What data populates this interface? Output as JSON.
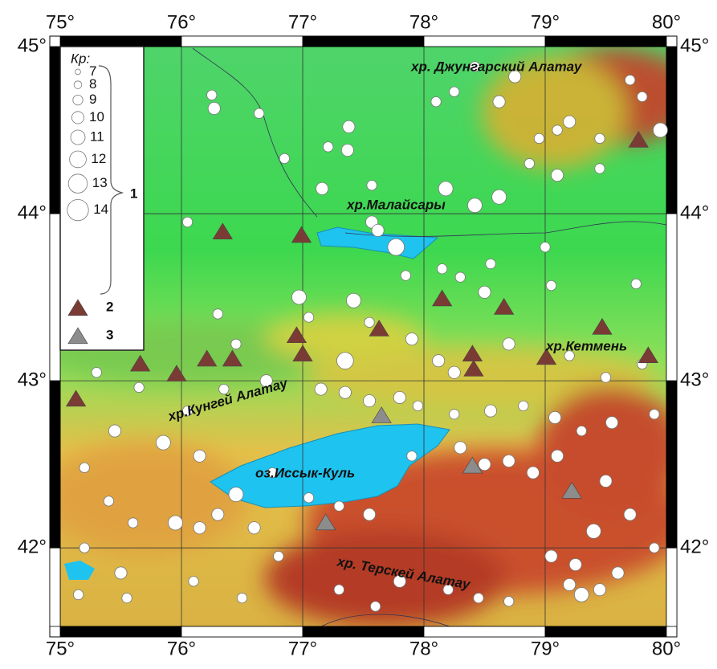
{
  "map": {
    "xlim": [
      75,
      80
    ],
    "ylim": [
      41.53,
      45
    ],
    "xticks": [
      {
        "value": 75,
        "label": "75°"
      },
      {
        "value": 76,
        "label": "76°"
      },
      {
        "value": 77,
        "label": "77°"
      },
      {
        "value": 78,
        "label": "78°"
      },
      {
        "value": 79,
        "label": "79°"
      },
      {
        "value": 80,
        "label": "80°"
      }
    ],
    "yticks": [
      {
        "value": 45,
        "label": "45°"
      },
      {
        "value": 44,
        "label": "44°"
      },
      {
        "value": 43,
        "label": "43°"
      },
      {
        "value": 42,
        "label": "42°"
      }
    ],
    "legend": {
      "title": "Кр:",
      "classes": [
        7,
        8,
        9,
        10,
        11,
        12,
        13,
        14
      ],
      "group_label": "1",
      "type2_label": "2",
      "type3_label": "3"
    },
    "place_labels": [
      "хр. Джунгарский Алатау",
      "хр.Малайсары",
      "хр.Кетмень",
      "хр.Кунгей Алатау",
      "оз.Иссык-Куль",
      "хр. Терскей Алатау"
    ],
    "type2_color": "#7b3b35",
    "type3_color": "#8c8c8c",
    "type2_stations": [
      [
        75.13,
        42.89
      ],
      [
        75.66,
        43.1
      ],
      [
        75.96,
        43.04
      ],
      [
        76.21,
        43.13
      ],
      [
        76.34,
        43.89
      ],
      [
        76.42,
        43.13
      ],
      [
        76.95,
        43.27
      ],
      [
        76.99,
        43.87
      ],
      [
        77.0,
        43.16
      ],
      [
        77.63,
        43.31
      ],
      [
        78.15,
        43.49
      ],
      [
        78.4,
        43.16
      ],
      [
        78.41,
        43.07
      ],
      [
        78.66,
        43.44
      ],
      [
        79.01,
        43.14
      ],
      [
        79.47,
        43.32
      ],
      [
        79.77,
        44.44
      ],
      [
        79.85,
        43.15
      ]
    ],
    "type3_stations": [
      [
        77.65,
        42.79
      ],
      [
        78.4,
        42.49
      ],
      [
        77.19,
        42.15
      ],
      [
        79.22,
        42.34
      ]
    ],
    "events": [
      [
        76.25,
        44.71,
        9
      ],
      [
        76.27,
        44.63,
        10
      ],
      [
        76.64,
        44.6,
        9
      ],
      [
        77.21,
        44.4,
        9
      ],
      [
        77.37,
        44.38,
        10
      ],
      [
        77.38,
        44.52,
        10
      ],
      [
        76.85,
        44.33,
        9
      ],
      [
        77.16,
        44.15,
        10
      ],
      [
        77.57,
        44.17,
        9
      ],
      [
        78.1,
        44.67,
        9
      ],
      [
        78.25,
        44.73,
        9
      ],
      [
        78.42,
        44.88,
        9
      ],
      [
        78.62,
        44.67,
        10
      ],
      [
        78.75,
        44.82,
        10
      ],
      [
        78.95,
        44.45,
        9
      ],
      [
        78.87,
        44.3,
        9
      ],
      [
        79.1,
        44.23,
        10
      ],
      [
        79.1,
        44.5,
        9
      ],
      [
        79.2,
        44.55,
        10
      ],
      [
        79.45,
        44.45,
        9
      ],
      [
        79.45,
        44.27,
        9
      ],
      [
        79.7,
        44.8,
        9
      ],
      [
        79.95,
        44.5,
        11
      ],
      [
        79.8,
        44.7,
        9
      ],
      [
        78.42,
        44.05,
        11
      ],
      [
        78.62,
        44.1,
        11
      ],
      [
        78.18,
        44.15,
        11
      ],
      [
        77.57,
        43.95,
        10
      ],
      [
        77.77,
        43.8,
        12
      ],
      [
        77.62,
        43.9,
        10
      ],
      [
        78.15,
        43.67,
        9
      ],
      [
        78.3,
        43.62,
        9
      ],
      [
        78.55,
        43.7,
        9
      ],
      [
        79.0,
        43.8,
        9
      ],
      [
        77.85,
        43.63,
        9
      ],
      [
        78.5,
        43.53,
        10
      ],
      [
        79.05,
        43.57,
        9
      ],
      [
        79.75,
        43.58,
        9
      ],
      [
        76.97,
        43.5,
        11
      ],
      [
        77.42,
        43.48,
        11
      ],
      [
        76.05,
        43.95,
        9
      ],
      [
        76.3,
        43.4,
        9
      ],
      [
        76.45,
        43.22,
        9
      ],
      [
        77.05,
        43.38,
        9
      ],
      [
        77.35,
        43.12,
        12
      ],
      [
        77.55,
        43.35,
        9
      ],
      [
        77.9,
        43.25,
        10
      ],
      [
        78.12,
        43.12,
        10
      ],
      [
        78.25,
        43.05,
        10
      ],
      [
        78.7,
        43.22,
        10
      ],
      [
        79.2,
        43.15,
        9
      ],
      [
        79.5,
        43.02,
        9
      ],
      [
        79.8,
        43.1,
        9
      ],
      [
        75.3,
        43.05,
        9
      ],
      [
        75.65,
        42.96,
        9
      ],
      [
        76.05,
        42.82,
        9
      ],
      [
        76.35,
        42.95,
        9
      ],
      [
        76.7,
        43.0,
        10
      ],
      [
        77.15,
        42.95,
        10
      ],
      [
        77.35,
        42.93,
        10
      ],
      [
        77.55,
        42.88,
        10
      ],
      [
        77.8,
        42.9,
        10
      ],
      [
        77.95,
        42.85,
        9
      ],
      [
        78.25,
        42.8,
        9
      ],
      [
        78.55,
        42.82,
        10
      ],
      [
        78.82,
        42.85,
        9
      ],
      [
        79.08,
        42.78,
        10
      ],
      [
        79.3,
        42.7,
        9
      ],
      [
        79.55,
        42.75,
        10
      ],
      [
        79.9,
        42.8,
        9
      ],
      [
        75.45,
        42.7,
        10
      ],
      [
        75.85,
        42.63,
        11
      ],
      [
        76.15,
        42.55,
        10
      ],
      [
        75.2,
        42.48,
        9
      ],
      [
        75.4,
        42.28,
        9
      ],
      [
        75.6,
        42.15,
        9
      ],
      [
        75.95,
        42.15,
        11
      ],
      [
        76.15,
        42.12,
        10
      ],
      [
        76.3,
        42.2,
        10
      ],
      [
        76.45,
        42.32,
        11
      ],
      [
        76.6,
        42.12,
        10
      ],
      [
        76.8,
        41.95,
        9
      ],
      [
        76.1,
        41.8,
        9
      ],
      [
        75.2,
        42.0,
        9
      ],
      [
        75.5,
        41.85,
        10
      ],
      [
        77.3,
        42.25,
        9
      ],
      [
        77.55,
        42.2,
        10
      ],
      [
        77.9,
        42.55,
        9
      ],
      [
        78.3,
        42.6,
        10
      ],
      [
        78.5,
        42.5,
        10
      ],
      [
        78.7,
        42.52,
        10
      ],
      [
        78.9,
        42.45,
        10
      ],
      [
        79.1,
        42.55,
        10
      ],
      [
        79.5,
        42.4,
        10
      ],
      [
        79.7,
        42.2,
        10
      ],
      [
        79.4,
        42.1,
        11
      ],
      [
        79.05,
        41.95,
        10
      ],
      [
        79.2,
        41.78,
        10
      ],
      [
        79.3,
        41.72,
        11
      ],
      [
        79.45,
        41.75,
        10
      ],
      [
        79.6,
        41.85,
        10
      ],
      [
        79.25,
        41.9,
        10
      ],
      [
        79.9,
        42.0,
        9
      ],
      [
        77.8,
        41.8,
        10
      ],
      [
        78.2,
        41.75,
        9
      ],
      [
        78.45,
        41.7,
        9
      ],
      [
        77.3,
        41.75,
        9
      ],
      [
        77.6,
        41.65,
        9
      ],
      [
        76.5,
        41.7,
        9
      ],
      [
        75.55,
        41.7,
        9
      ],
      [
        75.15,
        41.72,
        9
      ],
      [
        78.7,
        41.68,
        9
      ],
      [
        76.75,
        42.45,
        9
      ],
      [
        77.05,
        42.3,
        9
      ]
    ]
  }
}
